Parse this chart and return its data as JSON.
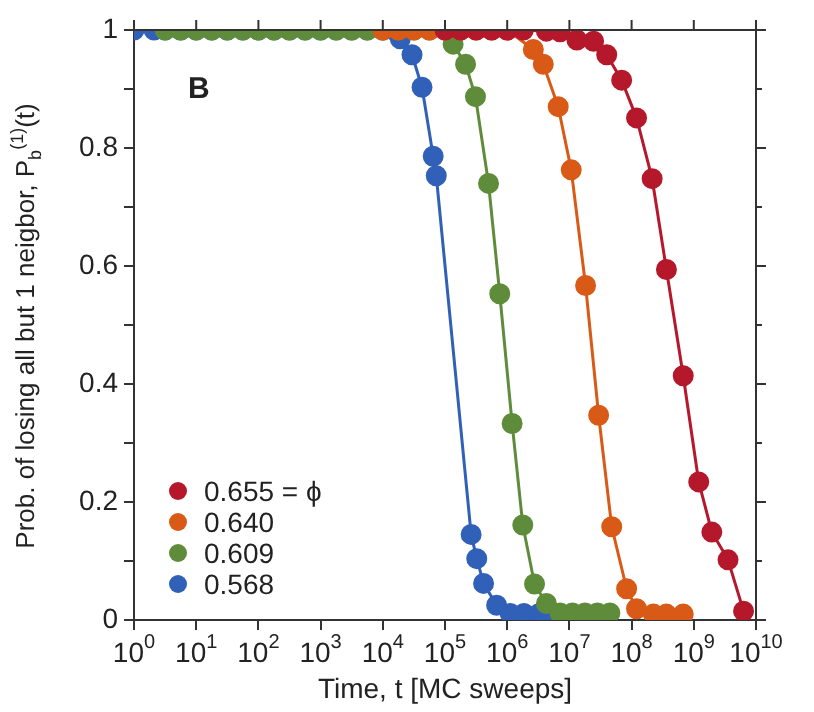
{
  "chart_data": {
    "type": "line",
    "xlabel": "Time, t [MC sweeps]",
    "ylabel": "Prob. of losing all but 1 neigbor, P$_{b}$$^{(1)}$(t)",
    "annotations": [
      "B"
    ],
    "log": "x",
    "xlim": [
      1,
      10000000000
    ],
    "ylim": [
      0,
      1
    ],
    "xticks": [
      {
        "value": 1,
        "label": "10$^{0}$"
      },
      {
        "value": 10,
        "label": "10$^{1}$"
      },
      {
        "value": 100,
        "label": "10$^{2}$"
      },
      {
        "value": 1000,
        "label": "10$^{3}$"
      },
      {
        "value": 10000,
        "label": "10$^{4}$"
      },
      {
        "value": 100000,
        "label": "10$^{5}$"
      },
      {
        "value": 1000000,
        "label": "10$^{6}$"
      },
      {
        "value": 10000000,
        "label": "10$^{7}$"
      },
      {
        "value": 100000000,
        "label": "10$^{8}$"
      },
      {
        "value": 1000000000,
        "label": "10$^{9}$"
      },
      {
        "value": 10000000000,
        "label": "10$^{10}$"
      }
    ],
    "yticks": [
      0,
      {
        "value": 0.1,
        "label": null
      },
      0.2,
      {
        "value": 0.3,
        "label": null
      },
      0.4,
      {
        "value": 0.5,
        "label": null
      },
      0.6,
      {
        "value": 0.7,
        "label": null
      },
      0.8,
      {
        "value": 0.9,
        "label": null
      },
      1
    ],
    "grid": false,
    "legend": "bottom left",
    "marker": "circle",
    "line_style": "solid",
    "series": [
      {
        "name": "0.655 = ϕ",
        "color": "#b5182b",
        "x": [
          100000.0,
          178000.0,
          316000.0,
          562000.0,
          1000000.0,
          1820000.0,
          4270000.0,
          7080000.0,
          13200000.0,
          24500000.0,
          39800000.0,
          69200000.0,
          120000000.0,
          214000000.0,
          363000000.0,
          676000000.0,
          1200000000.0,
          1950000000.0,
          3550000000.0,
          6310000000.0
        ],
        "values": [
          1,
          1,
          1,
          1,
          1,
          1,
          0.998,
          0.997,
          0.983,
          0.981,
          0.958,
          0.915,
          0.851,
          0.748,
          0.594,
          0.414,
          0.234,
          0.149,
          0.102,
          0.015
        ]
      },
      {
        "name": "0.640",
        "color": "#d95a16",
        "x": [
          10000.0,
          17800.0,
          31600.0,
          56200.0,
          100000.0,
          178000.0,
          316000.0,
          562000.0,
          1000000.0,
          2630000.0,
          3800000.0,
          6610000.0,
          10700000.0,
          18200000.0,
          29500000.0,
          47900000.0,
          83200000.0,
          120000000.0,
          224000000.0,
          363000000.0,
          676000000.0
        ],
        "values": [
          1,
          1,
          1,
          1,
          1,
          1,
          1,
          1,
          1,
          0.967,
          0.942,
          0.87,
          0.763,
          0.567,
          0.347,
          0.158,
          0.053,
          0.019,
          0.01,
          0.01,
          0.01
        ]
      },
      {
        "name": "0.609",
        "color": "#5e8c3a",
        "x": [
          3.16,
          5.62,
          10,
          17.8,
          31.6,
          56.2,
          100,
          178,
          316,
          562,
          1000,
          1780,
          3160,
          5620,
          10000.0,
          17800.0,
          31600.0,
          56200.0,
          135000.0,
          214000.0,
          309000.0,
          501000.0,
          759000.0,
          1200000.0,
          1780000.0,
          2750000.0,
          4270000.0,
          7080000.0,
          11200000.0,
          17800000.0,
          28200000.0,
          44700000.0
        ],
        "values": [
          1,
          1,
          1,
          1,
          1,
          1,
          1,
          1,
          1,
          1,
          1,
          1,
          1,
          1,
          1,
          1,
          1,
          1,
          0.976,
          0.942,
          0.887,
          0.74,
          0.553,
          0.333,
          0.161,
          0.061,
          0.028,
          0.012,
          0.012,
          0.012,
          0.012,
          0.012
        ]
      },
      {
        "name": "0.568",
        "color": "#3060b8",
        "x": [
          1,
          2.1,
          3.16,
          5.62,
          10,
          17.8,
          31.6,
          56.2,
          100,
          178,
          316,
          562,
          1000,
          1780,
          3160,
          5620,
          10000.0,
          15000.0,
          19100.0,
          29500.0,
          42700.0,
          64600.0,
          72400.0,
          263000.0,
          324000.0,
          417000.0,
          676000.0,
          1120000.0,
          1860000.0,
          3160000.0,
          5620000.0
        ],
        "values": [
          1,
          1,
          1,
          1,
          1,
          1,
          1,
          1,
          1,
          1,
          1,
          1,
          1,
          1,
          1,
          1,
          1,
          1,
          0.985,
          0.958,
          0.903,
          0.786,
          0.753,
          0.145,
          0.104,
          0.062,
          0.025,
          0.011,
          0.011,
          0.01,
          0.01
        ]
      }
    ]
  }
}
